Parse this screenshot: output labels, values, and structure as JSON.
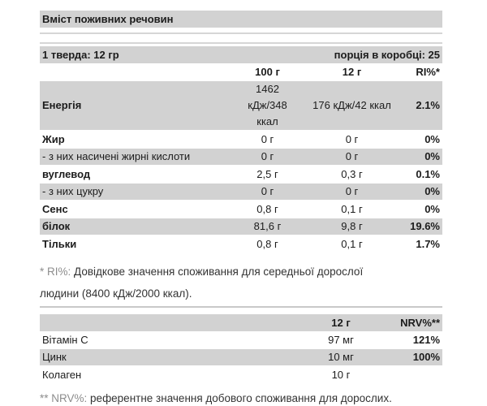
{
  "title": "Вміст поживних речовин",
  "colors": {
    "row_shade": "#d2d2d2",
    "text": "#1c1c1c",
    "footnote_prefix": "#8d8d8d",
    "divider": "#d6d6d6"
  },
  "table1": {
    "serving_label": "1 тверда: 12 гр",
    "box_label": "порція в коробці: 25",
    "columns": [
      "100 г",
      "12 г",
      "RI%*"
    ],
    "rows": [
      {
        "label": "Енергія",
        "v100": "1462 кДж/348 ккал",
        "v12": "176 кДж/42 ккал",
        "ri": "2.1%",
        "bold": true,
        "shade": true,
        "energy": true
      },
      {
        "label": "Жир",
        "v100": "0 г",
        "v12": "0 г",
        "ri": "0%",
        "bold": true,
        "shade": false,
        "energy": false
      },
      {
        "label": "- з них насичені жирні кислоти",
        "v100": "0 г",
        "v12": "0 г",
        "ri": "0%",
        "bold": false,
        "shade": true,
        "energy": false
      },
      {
        "label": "вуглевод",
        "v100": "2,5 г",
        "v12": "0,3 г",
        "ri": "0.1%",
        "bold": true,
        "shade": false,
        "energy": false
      },
      {
        "label": "- з них цукру",
        "v100": "0 г",
        "v12": "0 г",
        "ri": "0%",
        "bold": false,
        "shade": true,
        "energy": false
      },
      {
        "label": "Сенс",
        "v100": "0,8 г",
        "v12": "0,1 г",
        "ri": "0%",
        "bold": true,
        "shade": false,
        "energy": false
      },
      {
        "label": "білок",
        "v100": "81,6 г",
        "v12": "9,8 г",
        "ri": "19.6%",
        "bold": true,
        "shade": true,
        "energy": false
      },
      {
        "label": "Тільки",
        "v100": "0,8 г",
        "v12": "0,1 г",
        "ri": "1.7%",
        "bold": true,
        "shade": false,
        "energy": false
      }
    ],
    "footnote": {
      "prefix": "* RI%:",
      "text": "Довідкове значення споживання для середньої дорослої людини (8400 кДж/2000 ккал)."
    }
  },
  "table2": {
    "columns": [
      "12 г",
      "NRV%**"
    ],
    "rows": [
      {
        "label": "Вітамін C",
        "v12": "97 мг",
        "nrv": "121%",
        "shade": false
      },
      {
        "label": "Цинк",
        "v12": "10 мг",
        "nrv": "100%",
        "shade": true
      },
      {
        "label": "Колаген",
        "v12": "10 г",
        "nrv": "",
        "shade": false
      }
    ],
    "footnote": {
      "prefix": "** NRV%:",
      "text": "референтне значення добового споживання для дорослих."
    }
  }
}
